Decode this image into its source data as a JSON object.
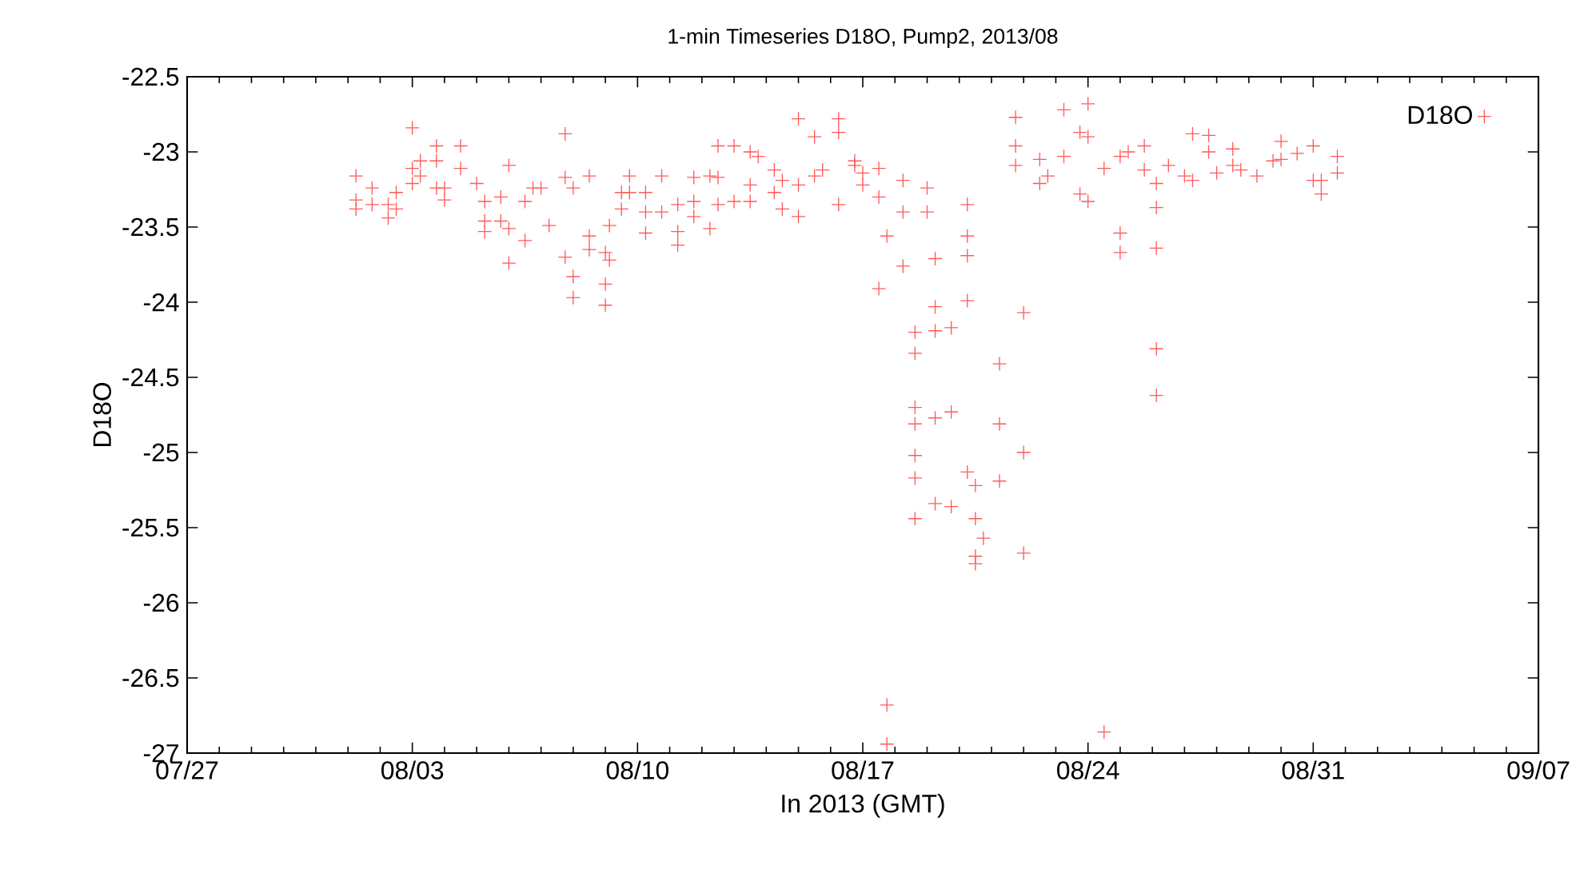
{
  "chart_data": {
    "type": "scatter",
    "title": "1-min Timeseries D18O, Pump2, 2013/08",
    "xlabel": "In 2013 (GMT)",
    "ylabel": "D18O",
    "xlim": [
      "2013-07-27",
      "2013-09-07"
    ],
    "xticks": [
      {
        "value": "2013-07-27",
        "label": "07/27"
      },
      {
        "value": "2013-08-03",
        "label": "08/03"
      },
      {
        "value": "2013-08-10",
        "label": "08/10"
      },
      {
        "value": "2013-08-17",
        "label": "08/17"
      },
      {
        "value": "2013-08-24",
        "label": "08/24"
      },
      {
        "value": "2013-08-31",
        "label": "08/31"
      },
      {
        "value": "2013-09-07",
        "label": "09/07"
      }
    ],
    "ylim": [
      -27,
      -22.5
    ],
    "yticks": [
      -27,
      -26.5,
      -26,
      -25.5,
      -25,
      -24.5,
      -24,
      -23.5,
      -23,
      -22.5
    ],
    "legend": "top right",
    "marker": "cross",
    "grid": false,
    "series": [
      {
        "name": "D18O",
        "color": "#ff5a5a",
        "x": [
          "2013-08-01T06:00",
          "2013-08-01T06:00",
          "2013-08-01T06:00",
          "2013-08-01T18:00",
          "2013-08-01T18:00",
          "2013-08-02T06:00",
          "2013-08-02T06:00",
          "2013-08-02T12:00",
          "2013-08-02T12:00",
          "2013-08-03T00:00",
          "2013-08-03T00:00",
          "2013-08-03T00:00",
          "2013-08-03T06:00",
          "2013-08-03T06:00",
          "2013-08-03T18:00",
          "2013-08-03T18:00",
          "2013-08-03T18:00",
          "2013-08-04T00:00",
          "2013-08-04T00:00",
          "2013-08-04T12:00",
          "2013-08-04T12:00",
          "2013-08-05T00:00",
          "2013-08-05T06:00",
          "2013-08-05T06:00",
          "2013-08-05T06:00",
          "2013-08-05T18:00",
          "2013-08-05T18:00",
          "2013-08-06T00:00",
          "2013-08-06T00:00",
          "2013-08-06T00:00",
          "2013-08-06T12:00",
          "2013-08-06T12:00",
          "2013-08-06T18:00",
          "2013-08-07T00:00",
          "2013-08-07T06:00",
          "2013-08-07T18:00",
          "2013-08-07T18:00",
          "2013-08-07T18:00",
          "2013-08-08T00:00",
          "2013-08-08T00:00",
          "2013-08-08T00:00",
          "2013-08-08T12:00",
          "2013-08-08T12:00",
          "2013-08-08T12:00",
          "2013-08-09T00:00",
          "2013-08-09T00:00",
          "2013-08-09T00:00",
          "2013-08-09T03:00",
          "2013-08-09T03:00",
          "2013-08-09T12:00",
          "2013-08-09T12:00",
          "2013-08-09T18:00",
          "2013-08-09T18:00",
          "2013-08-10T06:00",
          "2013-08-10T06:00",
          "2013-08-10T06:00",
          "2013-08-10T18:00",
          "2013-08-10T18:00",
          "2013-08-11T06:00",
          "2013-08-11T06:00",
          "2013-08-11T06:00",
          "2013-08-11T18:00",
          "2013-08-11T18:00",
          "2013-08-11T18:00",
          "2013-08-12T06:00",
          "2013-08-12T06:00",
          "2013-08-12T12:00",
          "2013-08-12T12:00",
          "2013-08-12T12:00",
          "2013-08-13T00:00",
          "2013-08-13T00:00",
          "2013-08-13T12:00",
          "2013-08-13T12:00",
          "2013-08-13T12:00",
          "2013-08-13T18:00",
          "2013-08-14T06:00",
          "2013-08-14T06:00",
          "2013-08-14T12:00",
          "2013-08-14T12:00",
          "2013-08-15T00:00",
          "2013-08-15T00:00",
          "2013-08-15T00:00",
          "2013-08-15T12:00",
          "2013-08-15T12:00",
          "2013-08-15T18:00",
          "2013-08-16T06:00",
          "2013-08-16T06:00",
          "2013-08-16T06:00",
          "2013-08-16T18:00",
          "2013-08-16T18:00",
          "2013-08-17T00:00",
          "2013-08-17T00:00",
          "2013-08-17T12:00",
          "2013-08-17T12:00",
          "2013-08-17T12:00",
          "2013-08-17T18:00",
          "2013-08-17T18:00",
          "2013-08-17T18:00",
          "2013-08-18T06:00",
          "2013-08-18T06:00",
          "2013-08-18T06:00",
          "2013-08-18T15:00",
          "2013-08-18T15:00",
          "2013-08-18T15:00",
          "2013-08-18T15:00",
          "2013-08-18T15:00",
          "2013-08-18T15:00",
          "2013-08-18T15:00",
          "2013-08-19T00:00",
          "2013-08-19T00:00",
          "2013-08-19T06:00",
          "2013-08-19T06:00",
          "2013-08-19T06:00",
          "2013-08-19T06:00",
          "2013-08-19T06:00",
          "2013-08-19T18:00",
          "2013-08-19T18:00",
          "2013-08-19T18:00",
          "2013-08-20T06:00",
          "2013-08-20T06:00",
          "2013-08-20T06:00",
          "2013-08-20T06:00",
          "2013-08-20T06:00",
          "2013-08-20T12:00",
          "2013-08-20T12:00",
          "2013-08-20T12:00",
          "2013-08-20T12:00",
          "2013-08-20T18:00",
          "2013-08-21T06:00",
          "2013-08-21T06:00",
          "2013-08-21T06:00",
          "2013-08-21T18:00",
          "2013-08-21T18:00",
          "2013-08-21T18:00",
          "2013-08-22T00:00",
          "2013-08-22T00:00",
          "2013-08-22T00:00",
          "2013-08-22T12:00",
          "2013-08-22T12:00",
          "2013-08-22T18:00",
          "2013-08-23T06:00",
          "2013-08-23T06:00",
          "2013-08-23T18:00",
          "2013-08-23T18:00",
          "2013-08-24T00:00",
          "2013-08-24T00:00",
          "2013-08-24T00:00",
          "2013-08-24T12:00",
          "2013-08-24T12:00",
          "2013-08-25T00:00",
          "2013-08-25T00:00",
          "2013-08-25T00:00",
          "2013-08-25T06:00",
          "2013-08-25T18:00",
          "2013-08-25T18:00",
          "2013-08-26T03:00",
          "2013-08-26T03:00",
          "2013-08-26T03:00",
          "2013-08-26T03:00",
          "2013-08-26T03:00",
          "2013-08-26T12:00",
          "2013-08-27T00:00",
          "2013-08-27T06:00",
          "2013-08-27T06:00",
          "2013-08-27T18:00",
          "2013-08-27T18:00",
          "2013-08-28T00:00",
          "2013-08-28T12:00",
          "2013-08-28T12:00",
          "2013-08-28T18:00",
          "2013-08-29T06:00",
          "2013-08-29T18:00",
          "2013-08-30T00:00",
          "2013-08-30T00:00",
          "2013-08-30T12:00",
          "2013-08-31T00:00",
          "2013-08-31T00:00",
          "2013-08-31T06:00",
          "2013-08-31T06:00",
          "2013-08-31T18:00",
          "2013-08-31T18:00"
        ],
        "values": [
          -23.16,
          -23.32,
          -23.38,
          -23.24,
          -23.35,
          -23.35,
          -23.44,
          -23.27,
          -23.38,
          -22.84,
          -23.11,
          -23.21,
          -23.06,
          -23.16,
          -22.96,
          -23.06,
          -23.24,
          -23.24,
          -23.32,
          -22.96,
          -23.11,
          -23.21,
          -23.33,
          -23.46,
          -23.53,
          -23.3,
          -23.46,
          -23.09,
          -23.51,
          -23.74,
          -23.33,
          -23.59,
          -23.24,
          -23.24,
          -23.49,
          -22.88,
          -23.17,
          -23.7,
          -23.24,
          -23.83,
          -23.97,
          -23.16,
          -23.56,
          -23.65,
          -23.67,
          -23.88,
          -24.02,
          -23.49,
          -23.72,
          -23.27,
          -23.38,
          -23.16,
          -23.27,
          -23.27,
          -23.4,
          -23.54,
          -23.16,
          -23.4,
          -23.35,
          -23.53,
          -23.62,
          -23.17,
          -23.33,
          -23.43,
          -23.16,
          -23.51,
          -22.96,
          -23.17,
          -23.35,
          -22.96,
          -23.33,
          -23.0,
          -23.22,
          -23.33,
          -23.03,
          -23.12,
          -23.27,
          -23.19,
          -23.38,
          -22.78,
          -23.22,
          -23.43,
          -22.9,
          -23.16,
          -23.12,
          -22.78,
          -22.87,
          -23.35,
          -23.06,
          -23.09,
          -23.14,
          -23.22,
          -23.91,
          -23.11,
          -23.3,
          -23.56,
          -26.68,
          -26.94,
          -23.19,
          -23.4,
          -23.76,
          -24.2,
          -24.34,
          -24.7,
          -24.81,
          -25.02,
          -25.17,
          -25.44,
          -23.24,
          -23.4,
          -23.71,
          -24.03,
          -24.19,
          -24.77,
          -25.34,
          -24.17,
          -24.73,
          -25.36,
          -23.35,
          -23.56,
          -23.69,
          -23.99,
          -25.13,
          -25.22,
          -25.44,
          -25.69,
          -25.74,
          -25.57,
          -24.41,
          -24.81,
          -25.19,
          -22.77,
          -22.96,
          -23.09,
          -24.07,
          -25.0,
          -25.67,
          -23.05,
          -23.21,
          -23.16,
          -22.72,
          -23.03,
          -22.87,
          -23.28,
          -22.68,
          -22.9,
          -23.33,
          -26.86,
          -23.11,
          -23.03,
          -23.54,
          -23.67,
          -23.0,
          -22.96,
          -23.12,
          -23.21,
          -23.37,
          -23.64,
          -24.31,
          -24.62,
          -23.09,
          -23.16,
          -23.19,
          -22.88,
          -22.89,
          -23.0,
          -23.14,
          -22.98,
          -23.09,
          -23.12,
          -23.16,
          -23.06,
          -22.93,
          -23.05,
          -23.01,
          -22.96,
          -23.19,
          -23.19,
          -23.28,
          -23.03,
          -23.14
        ]
      }
    ]
  }
}
